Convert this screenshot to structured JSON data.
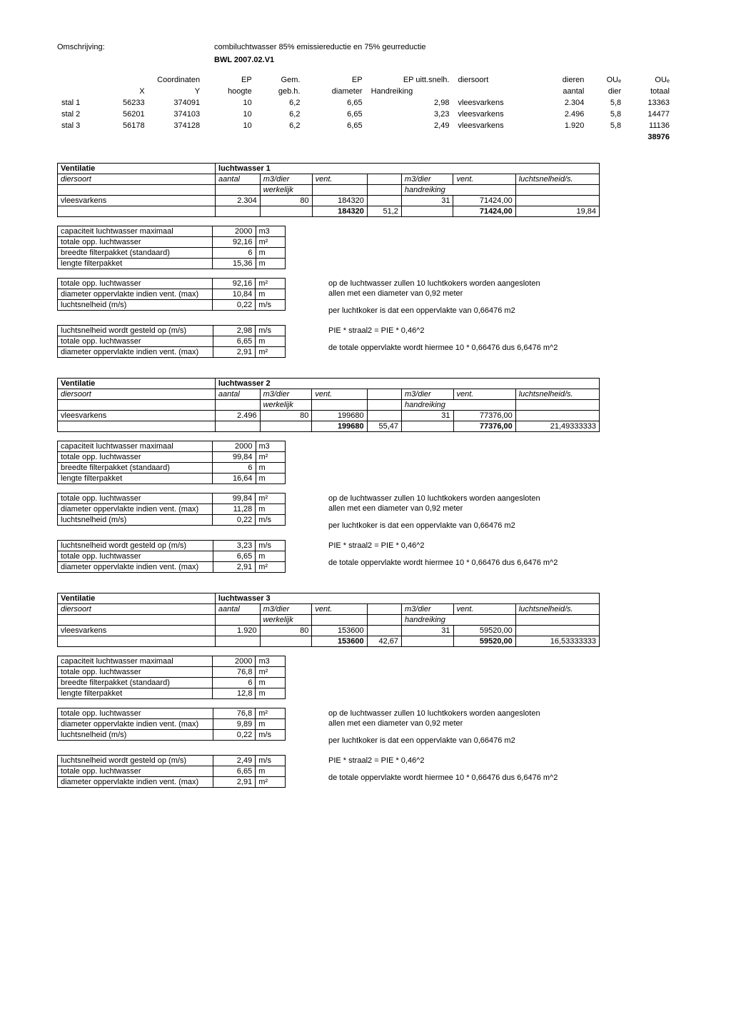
{
  "header": {
    "omschrijving_label": "Omschrijving:",
    "omschrijving_value": "combiluchtwasser 85% emissiereductie en 75% geurreductie",
    "bwl": "BWL 2007.02.V1"
  },
  "main_table": {
    "col_headers": {
      "coord_label": "Coordinaten",
      "x": "X",
      "y": "Y",
      "ep_hoogte": "EP",
      "ep_hoogte_sub": "hoogte",
      "gem": "Gem.",
      "gem_sub": "geb.h.",
      "ep_diam": "EP",
      "ep_diam_sub": "diameter",
      "ep_uitt": "EP uitt.snelh.",
      "hand": "Handreiking",
      "diersoort": "diersoort",
      "dieren": "dieren",
      "aantal": "aantal",
      "oue_dier": "OUₑ",
      "dier": "dier",
      "oue_totaal": "OUₑ",
      "totaal": "totaal"
    },
    "rows": [
      {
        "stal": "stal 1",
        "x": "56233",
        "y": "374091",
        "h": "10",
        "gem": "6,2",
        "diam": "6,65",
        "snelh": "2,98",
        "soort": "vleesvarkens",
        "aantal": "2.304",
        "oue_dier": "5,8",
        "oue_totaal": "13363"
      },
      {
        "stal": "stal 2",
        "x": "56201",
        "y": "374103",
        "h": "10",
        "gem": "6,2",
        "diam": "6,65",
        "snelh": "3,23",
        "soort": "vleesvarkens",
        "aantal": "2.496",
        "oue_dier": "5,8",
        "oue_totaal": "14477"
      },
      {
        "stal": "stal 3",
        "x": "56178",
        "y": "374128",
        "h": "10",
        "gem": "6,2",
        "diam": "6,65",
        "snelh": "2,49",
        "soort": "vleesvarkens",
        "aantal": "1.920",
        "oue_dier": "5,8",
        "oue_totaal": "11136"
      }
    ],
    "total": "38976"
  },
  "ventilatie_label": "Ventilatie",
  "diersoort_label": "diersoort",
  "aantal_label": "aantal",
  "m3dier_label": "m3/dier",
  "werkelijk_label": "werkelijk",
  "vent_label": "vent.",
  "handreiking_label": "handreiking",
  "snelheid_label": "luchtsnelheid/s.",
  "vleesvarkens_label": "vleesvarkens",
  "sections": [
    {
      "title": "luchtwasser 1",
      "aantal": "2.304",
      "m3dier": "80",
      "vent": "184320",
      "m3dier_h": "31",
      "vent_h": "71424,00",
      "sumvent": "184320",
      "pct": "51,2",
      "sumvent_h": "71424,00",
      "snelh": "19,84",
      "cap": "2000",
      "opp": "92,16",
      "breedte": "6",
      "lengte": "15,36",
      "opp2": "92,16",
      "diam_opp": "10,84",
      "lsnelh": "0,22",
      "lsnelh_gest": "2,98",
      "opp_l": "6,65",
      "diam_opp2": "2,91"
    },
    {
      "title": "luchtwasser 2",
      "aantal": "2.496",
      "m3dier": "80",
      "vent": "199680",
      "m3dier_h": "31",
      "vent_h": "77376,00",
      "sumvent": "199680",
      "pct": "55,47",
      "sumvent_h": "77376,00",
      "snelh": "21,49333333",
      "cap": "2000",
      "opp": "99,84",
      "breedte": "6",
      "lengte": "16,64",
      "opp2": "99,84",
      "diam_opp": "11,28",
      "lsnelh": "0,22",
      "lsnelh_gest": "3,23",
      "opp_l": "6,65",
      "diam_opp2": "2,91"
    },
    {
      "title": "luchtwasser 3",
      "aantal": "1.920",
      "m3dier": "80",
      "vent": "153600",
      "m3dier_h": "31",
      "vent_h": "59520,00",
      "sumvent": "153600",
      "pct": "42,67",
      "sumvent_h": "59520,00",
      "snelh": "16,53333333",
      "cap": "2000",
      "opp": "76,8",
      "breedte": "6",
      "lengte": "12,8",
      "opp2": "76,8",
      "diam_opp": "9,89",
      "lsnelh": "0,22",
      "lsnelh_gest": "2,49",
      "opp_l": "6,65",
      "diam_opp2": "2,91"
    }
  ],
  "mini_labels": {
    "cap": "capaciteit luchtwasser maximaal",
    "opp": "totale opp. luchtwasser",
    "breedte": "breedte filterpakket (standaard)",
    "lengte": "lengte filterpakket",
    "diam_opp": "diameter oppervlakte indien vent. (max)",
    "lsnelh": "luchtsnelheid (m/s)",
    "lsnelh_gest": "luchtsnelheid wordt gesteld op (m/s)",
    "u_m3": "m3",
    "u_m2": "m²",
    "u_m": "m",
    "u_ms": "m/s"
  },
  "notes": {
    "n1": "op de luchtwasser zullen 10 luchtkokers worden aangesloten",
    "n2": "allen met een diameter van 0,92 meter",
    "n3": "per luchtkoker is dat een oppervlakte van 0,66476 m2",
    "n4": "PIE * straal2 = PIE * 0,46^2",
    "n5": "de totale oppervlakte wordt hiermee 10 * 0,66476 dus 6,6476 m^2"
  }
}
